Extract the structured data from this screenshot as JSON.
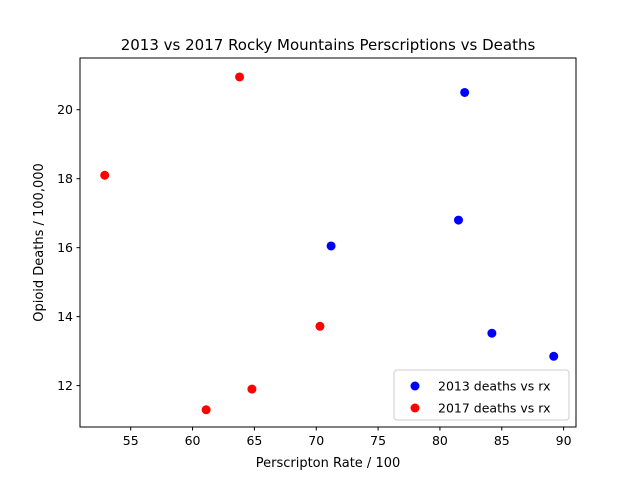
{
  "chart_data": {
    "type": "scatter",
    "title": "2013 vs 2017 Rocky Mountains Perscriptions vs Deaths",
    "xlabel": "Perscripton Rate / 100",
    "ylabel": "Opioid Deaths / 100,000",
    "xlim": [
      50.9,
      91.0
    ],
    "ylim": [
      10.8,
      21.5
    ],
    "x_ticks": [
      55,
      60,
      65,
      70,
      75,
      80,
      85,
      90
    ],
    "y_ticks": [
      12,
      14,
      16,
      18,
      20
    ],
    "grid": false,
    "legend_position": "lower-right",
    "series": [
      {
        "name": "2013 deaths vs rx",
        "color": "#0000ff",
        "points": [
          {
            "x": 82.0,
            "y": 20.5
          },
          {
            "x": 81.5,
            "y": 16.8
          },
          {
            "x": 71.2,
            "y": 16.05
          },
          {
            "x": 84.2,
            "y": 13.52
          },
          {
            "x": 89.2,
            "y": 12.85
          }
        ]
      },
      {
        "name": "2017 deaths vs rx",
        "color": "#ff0000",
        "points": [
          {
            "x": 63.8,
            "y": 20.95
          },
          {
            "x": 52.9,
            "y": 18.1
          },
          {
            "x": 70.3,
            "y": 13.72
          },
          {
            "x": 64.8,
            "y": 11.9
          },
          {
            "x": 61.1,
            "y": 11.3
          }
        ]
      }
    ]
  }
}
